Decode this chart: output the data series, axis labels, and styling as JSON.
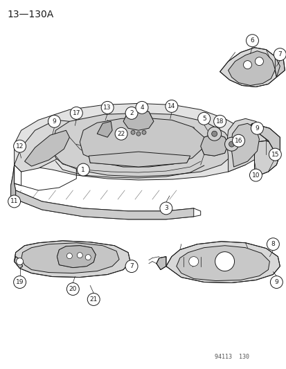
{
  "title": "13—130A",
  "watermark": "94113  130",
  "bg_color": "#ffffff",
  "fig_width": 4.14,
  "fig_height": 5.33,
  "dpi": 100,
  "line_color": "#1a1a1a",
  "callout_font_size": 6.5,
  "title_font_size": 10,
  "watermark_font_size": 6
}
